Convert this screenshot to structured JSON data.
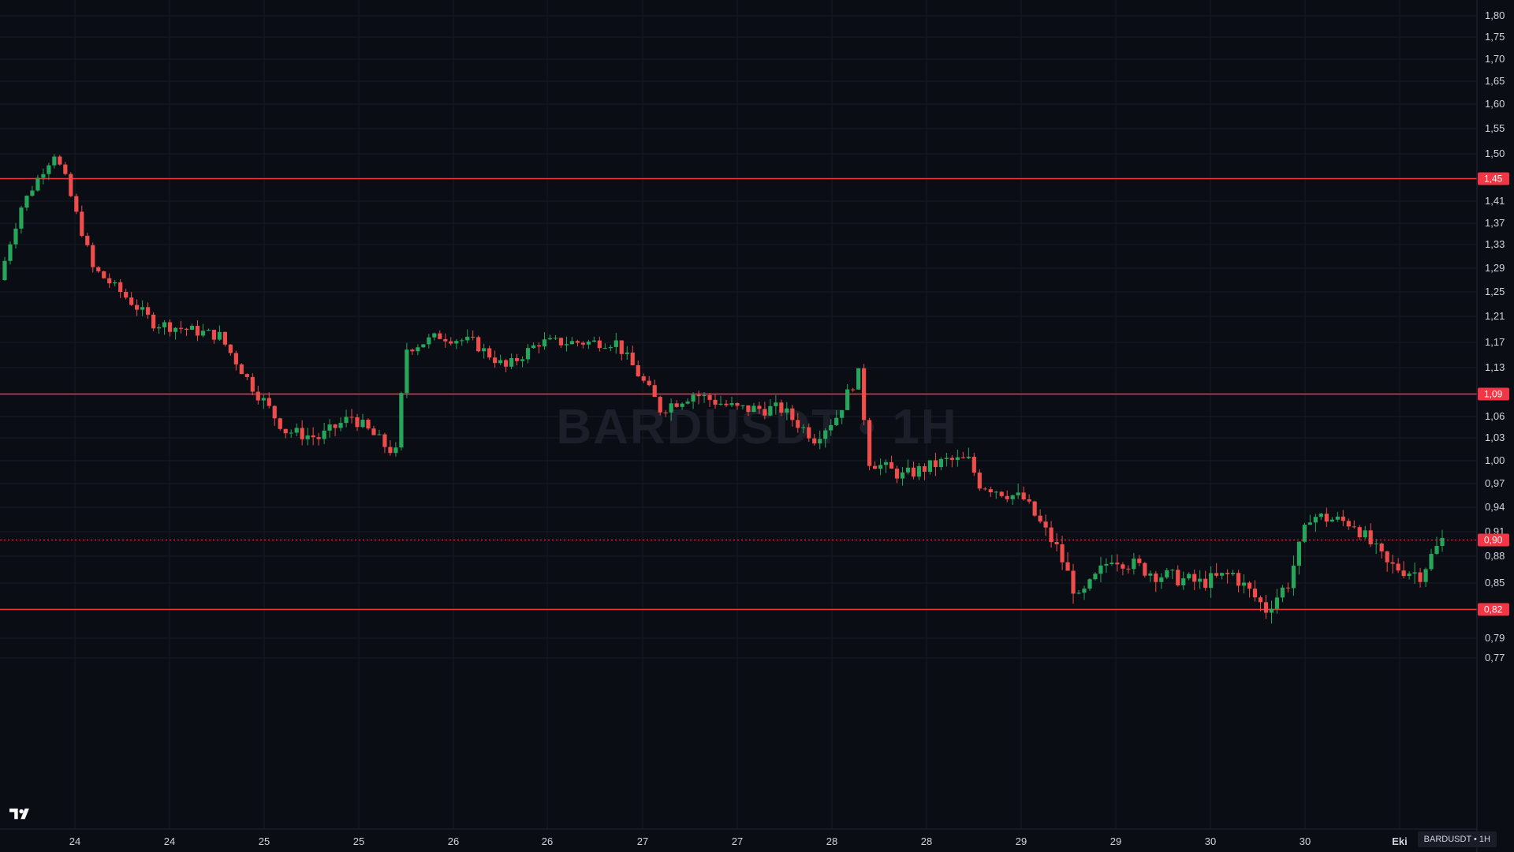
{
  "chart_data": {
    "type": "candlestick",
    "watermark": "BARDUSDT • 1H",
    "symbol_badge": "BARDUSDT • 1H",
    "y_ticks": [
      "1,80",
      "1,75",
      "1,70",
      "1,65",
      "1,60",
      "1,55",
      "1,50",
      "1,45",
      "1,41",
      "1,37",
      "1,33",
      "1,29",
      "1,25",
      "1,21",
      "1,17",
      "1,13",
      "1,09",
      "1,06",
      "1,03",
      "1,00",
      "0,97",
      "0,94",
      "0,91",
      "0,88",
      "0,85",
      "0,82",
      "0,79",
      "0,77"
    ],
    "x_ticks": [
      "24",
      "24",
      "25",
      "25",
      "26",
      "26",
      "27",
      "27",
      "28",
      "28",
      "29",
      "29",
      "30",
      "30",
      "Eki"
    ],
    "levels": [
      {
        "value": 1.45,
        "label": "1,45",
        "style": "solid"
      },
      {
        "value": 1.09,
        "label": "1,09",
        "style": "solid"
      },
      {
        "value": 0.82,
        "label": "0,82",
        "style": "solid"
      },
      {
        "value": 0.9,
        "label": "0,90",
        "style": "dotted"
      }
    ],
    "colors": {
      "up": "#26a65b",
      "down": "#ef4c4c",
      "level": "#f23645",
      "background": "#0b0d14",
      "grid": "#161a25"
    },
    "last_price": 0.9,
    "candles_sample": [
      {
        "o": 1.27,
        "h": 1.31,
        "l": 1.23,
        "c": 1.29
      },
      {
        "o": 1.29,
        "h": 1.4,
        "l": 1.28,
        "c": 1.38
      },
      {
        "o": 1.38,
        "h": 1.47,
        "l": 1.34,
        "c": 1.42
      },
      {
        "o": 1.42,
        "h": 1.53,
        "l": 1.4,
        "c": 1.5
      },
      {
        "o": 1.5,
        "h": 1.52,
        "l": 1.43,
        "c": 1.45
      }
    ]
  }
}
